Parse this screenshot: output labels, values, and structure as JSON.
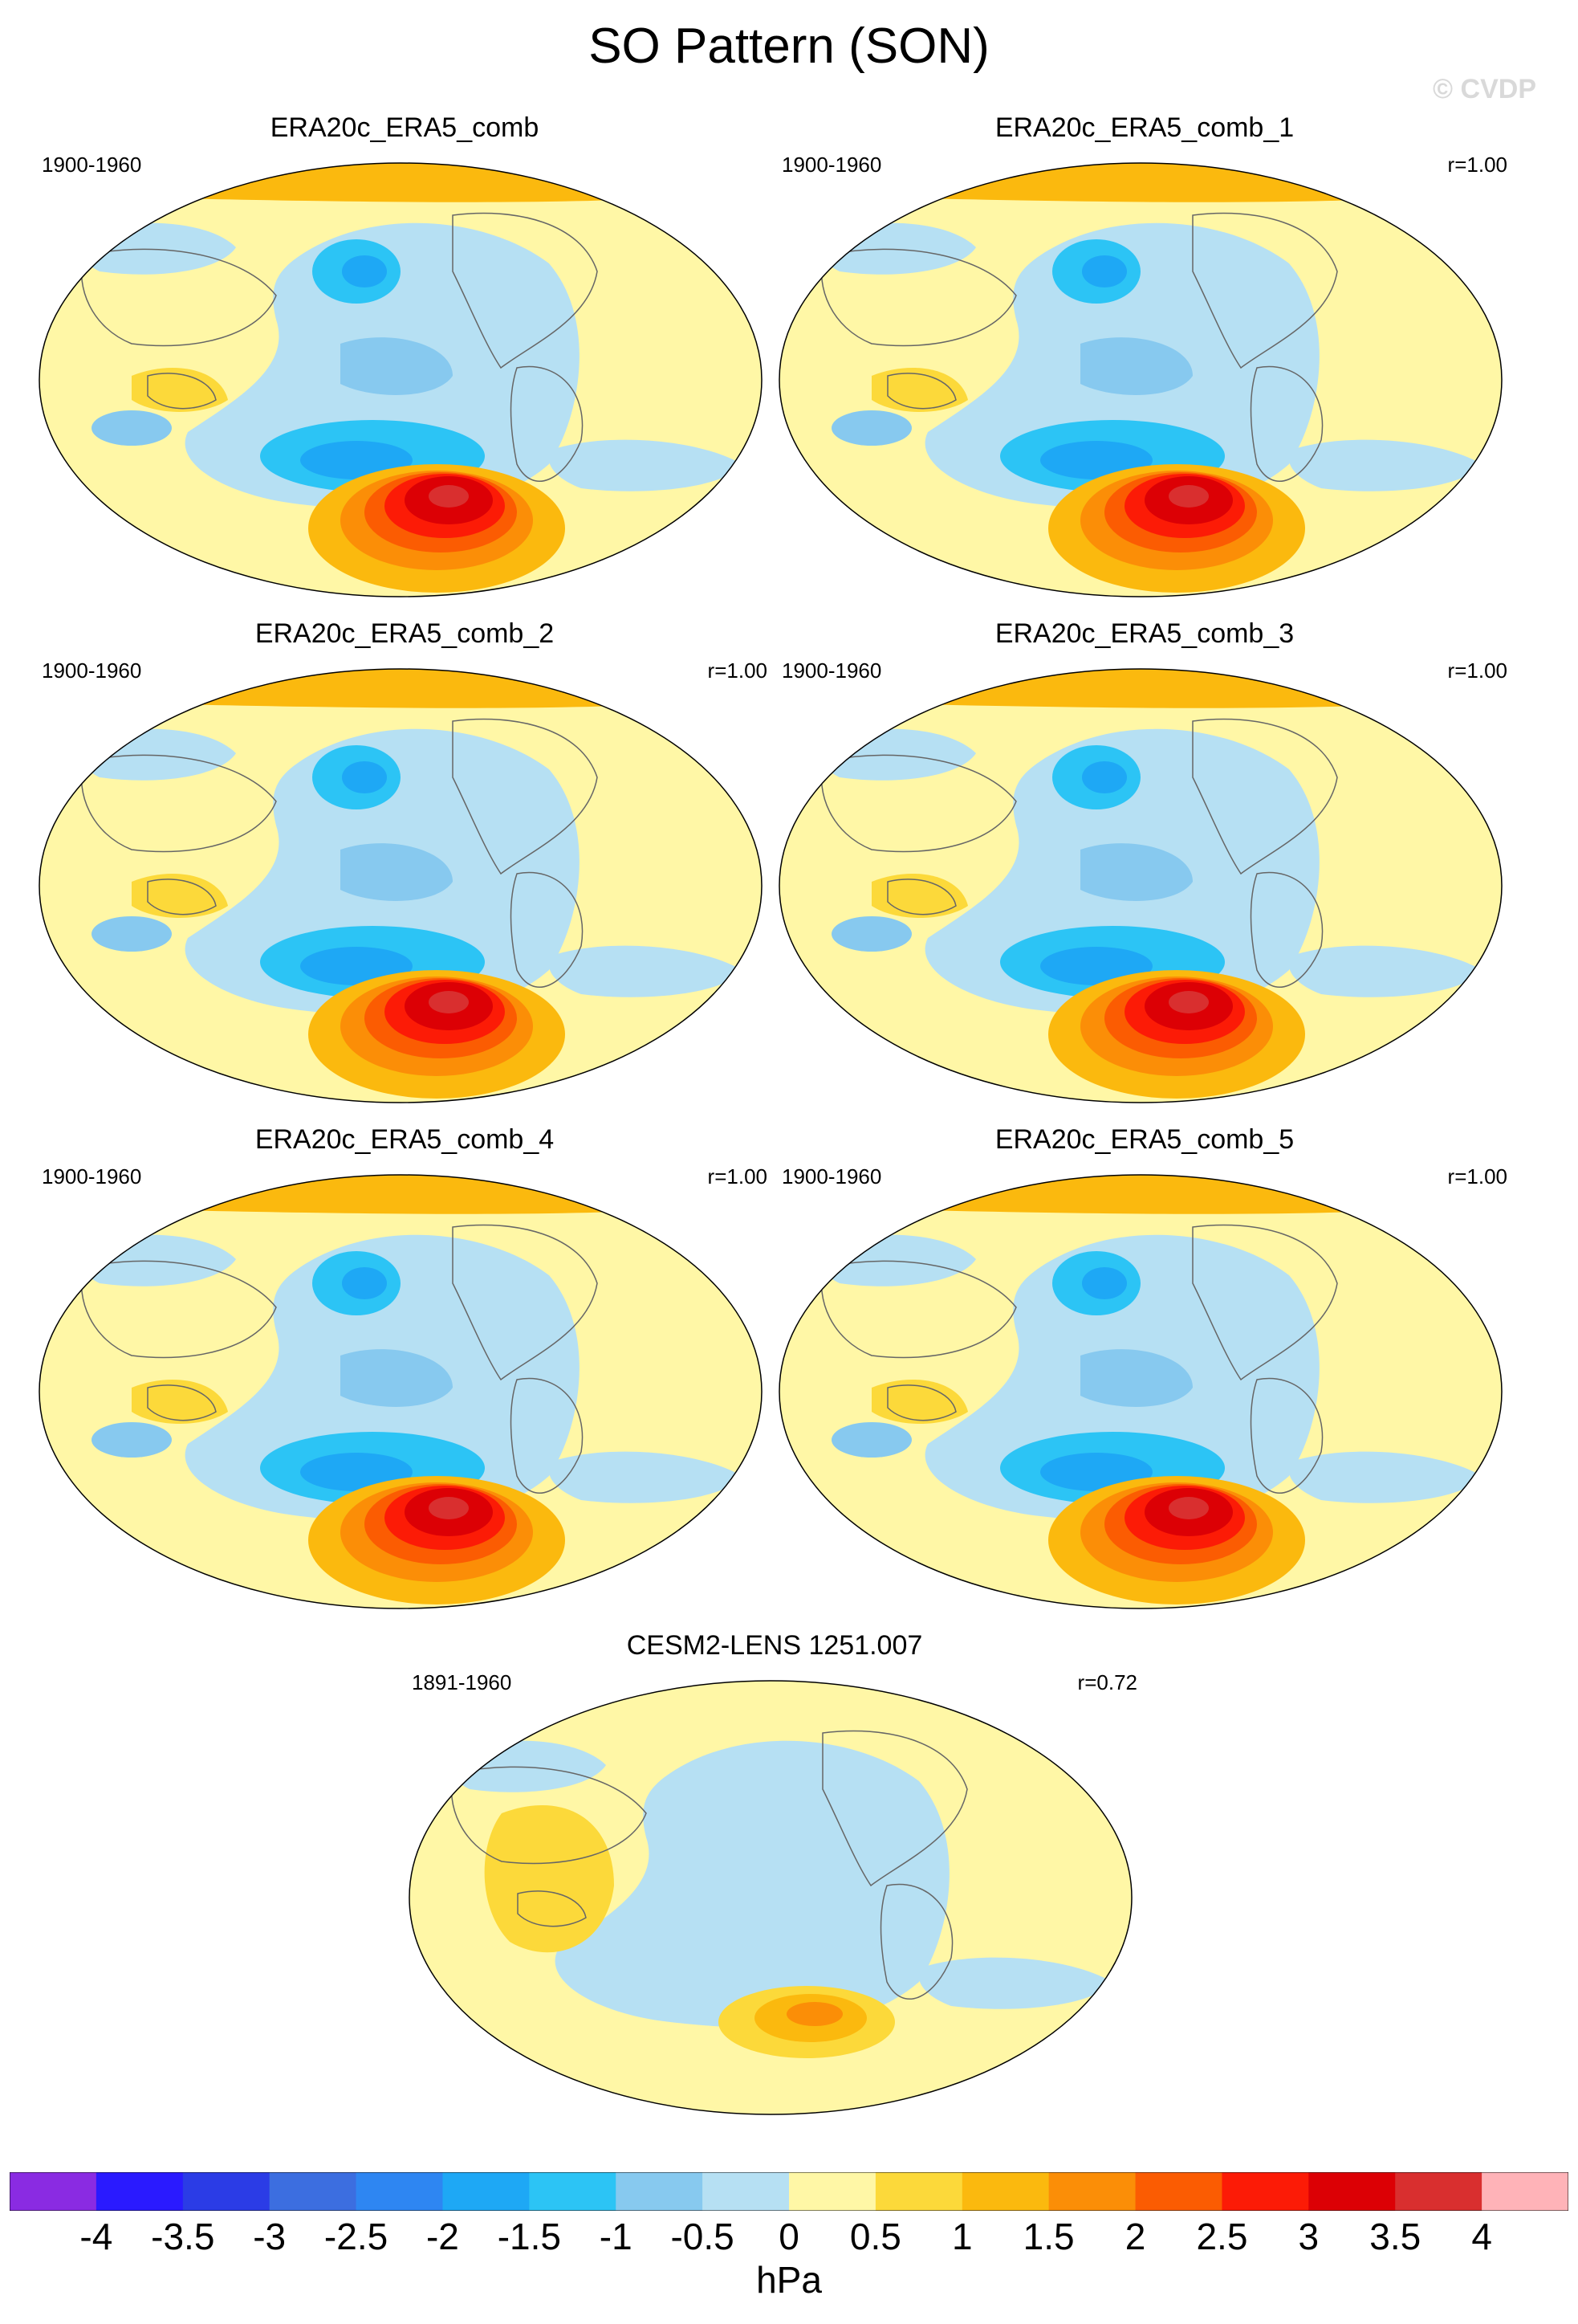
{
  "figure": {
    "title": "SO Pattern (SON)",
    "watermark": "© CVDP",
    "units": "hPa"
  },
  "panels": [
    {
      "title": "ERA20c_ERA5_comb",
      "period": "1900-1960",
      "corr": ""
    },
    {
      "title": "ERA20c_ERA5_comb_1",
      "period": "1900-1960",
      "corr": "r=1.00"
    },
    {
      "title": "ERA20c_ERA5_comb_2",
      "period": "1900-1960",
      "corr": "r=1.00"
    },
    {
      "title": "ERA20c_ERA5_comb_3",
      "period": "1900-1960",
      "corr": "r=1.00"
    },
    {
      "title": "ERA20c_ERA5_comb_4",
      "period": "1900-1960",
      "corr": "r=1.00"
    },
    {
      "title": "ERA20c_ERA5_comb_5",
      "period": "1900-1960",
      "corr": "r=1.00"
    },
    {
      "title": "CESM2-LENS 1251.007",
      "period": "1891-1960",
      "corr": "r=0.72"
    }
  ],
  "colorbar": {
    "ticks": [
      "-4",
      "-3.5",
      "-3",
      "-2.5",
      "-2",
      "-1.5",
      "-1",
      "-0.5",
      "0",
      "0.5",
      "1",
      "1.5",
      "2",
      "2.5",
      "3",
      "3.5",
      "4"
    ],
    "colors": [
      "#8a2be2",
      "#2a1aff",
      "#2b3ce6",
      "#3c6ee0",
      "#2e86f2",
      "#1ea8f5",
      "#2cc4f5",
      "#87c9ef",
      "#b6e0f3",
      "#fff7a6",
      "#fcd93a",
      "#fbb90e",
      "#fb8e07",
      "#fb5c02",
      "#fc1b06",
      "#dc0005",
      "#d92f2f",
      "#ffb3b8"
    ]
  }
}
